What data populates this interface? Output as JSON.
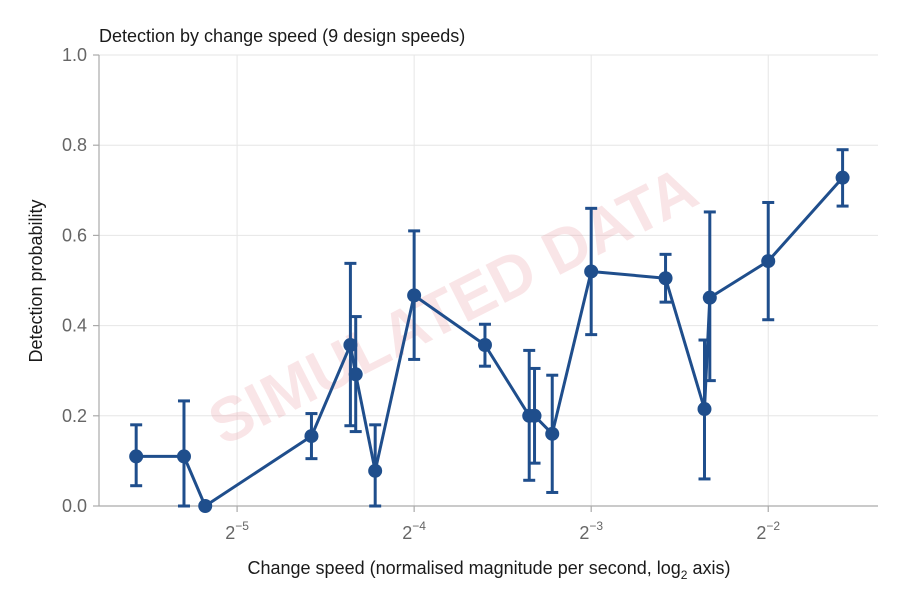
{
  "chart_data": {
    "type": "line",
    "title": "Detection by change speed (9 design speeds)",
    "xlabel": "Change speed (normalised magnitude per second, log",
    "xlabel_sub": "2",
    "xlabel_suffix": " axis)",
    "ylabel": "Detection probability",
    "xscale": "log2",
    "xlim_log2": [
      -5.78,
      -1.38
    ],
    "ylim": [
      0,
      1
    ],
    "grid": true,
    "x_ticks": [
      {
        "base": "2",
        "exp": "−5",
        "log2": -5
      },
      {
        "base": "2",
        "exp": "−4",
        "log2": -4
      },
      {
        "base": "2",
        "exp": "−3",
        "log2": -3
      },
      {
        "base": "2",
        "exp": "−2",
        "log2": -2
      }
    ],
    "y_ticks": [
      "0.0",
      "0.2",
      "0.4",
      "0.6",
      "0.8",
      "1.0"
    ],
    "series": [
      {
        "color": "#1f4e8c",
        "points": [
          {
            "log2x": -5.57,
            "y": 0.11,
            "lo": 0.045,
            "hi": 0.18
          },
          {
            "log2x": -5.3,
            "y": 0.11,
            "lo": 0.0,
            "hi": 0.233
          },
          {
            "log2x": -5.18,
            "y": 0.0,
            "lo": 0.0,
            "hi": 0.0
          },
          {
            "log2x": -4.58,
            "y": 0.155,
            "lo": 0.105,
            "hi": 0.205
          },
          {
            "log2x": -4.36,
            "y": 0.357,
            "lo": 0.178,
            "hi": 0.538
          },
          {
            "log2x": -4.33,
            "y": 0.292,
            "lo": 0.165,
            "hi": 0.42
          },
          {
            "log2x": -4.22,
            "y": 0.078,
            "lo": 0.0,
            "hi": 0.18
          },
          {
            "log2x": -4.0,
            "y": 0.467,
            "lo": 0.325,
            "hi": 0.61
          },
          {
            "log2x": -3.6,
            "y": 0.357,
            "lo": 0.31,
            "hi": 0.403
          },
          {
            "log2x": -3.35,
            "y": 0.2,
            "lo": 0.057,
            "hi": 0.345
          },
          {
            "log2x": -3.32,
            "y": 0.2,
            "lo": 0.095,
            "hi": 0.305
          },
          {
            "log2x": -3.22,
            "y": 0.16,
            "lo": 0.03,
            "hi": 0.29
          },
          {
            "log2x": -3.0,
            "y": 0.52,
            "lo": 0.38,
            "hi": 0.66
          },
          {
            "log2x": -2.58,
            "y": 0.505,
            "lo": 0.452,
            "hi": 0.558
          },
          {
            "log2x": -2.36,
            "y": 0.215,
            "lo": 0.06,
            "hi": 0.368
          },
          {
            "log2x": -2.33,
            "y": 0.462,
            "lo": 0.278,
            "hi": 0.652
          },
          {
            "log2x": -2.0,
            "y": 0.543,
            "lo": 0.413,
            "hi": 0.673
          },
          {
            "log2x": -1.58,
            "y": 0.728,
            "lo": 0.665,
            "hi": 0.79
          }
        ]
      }
    ]
  },
  "watermark": "SIMULATED DATA"
}
